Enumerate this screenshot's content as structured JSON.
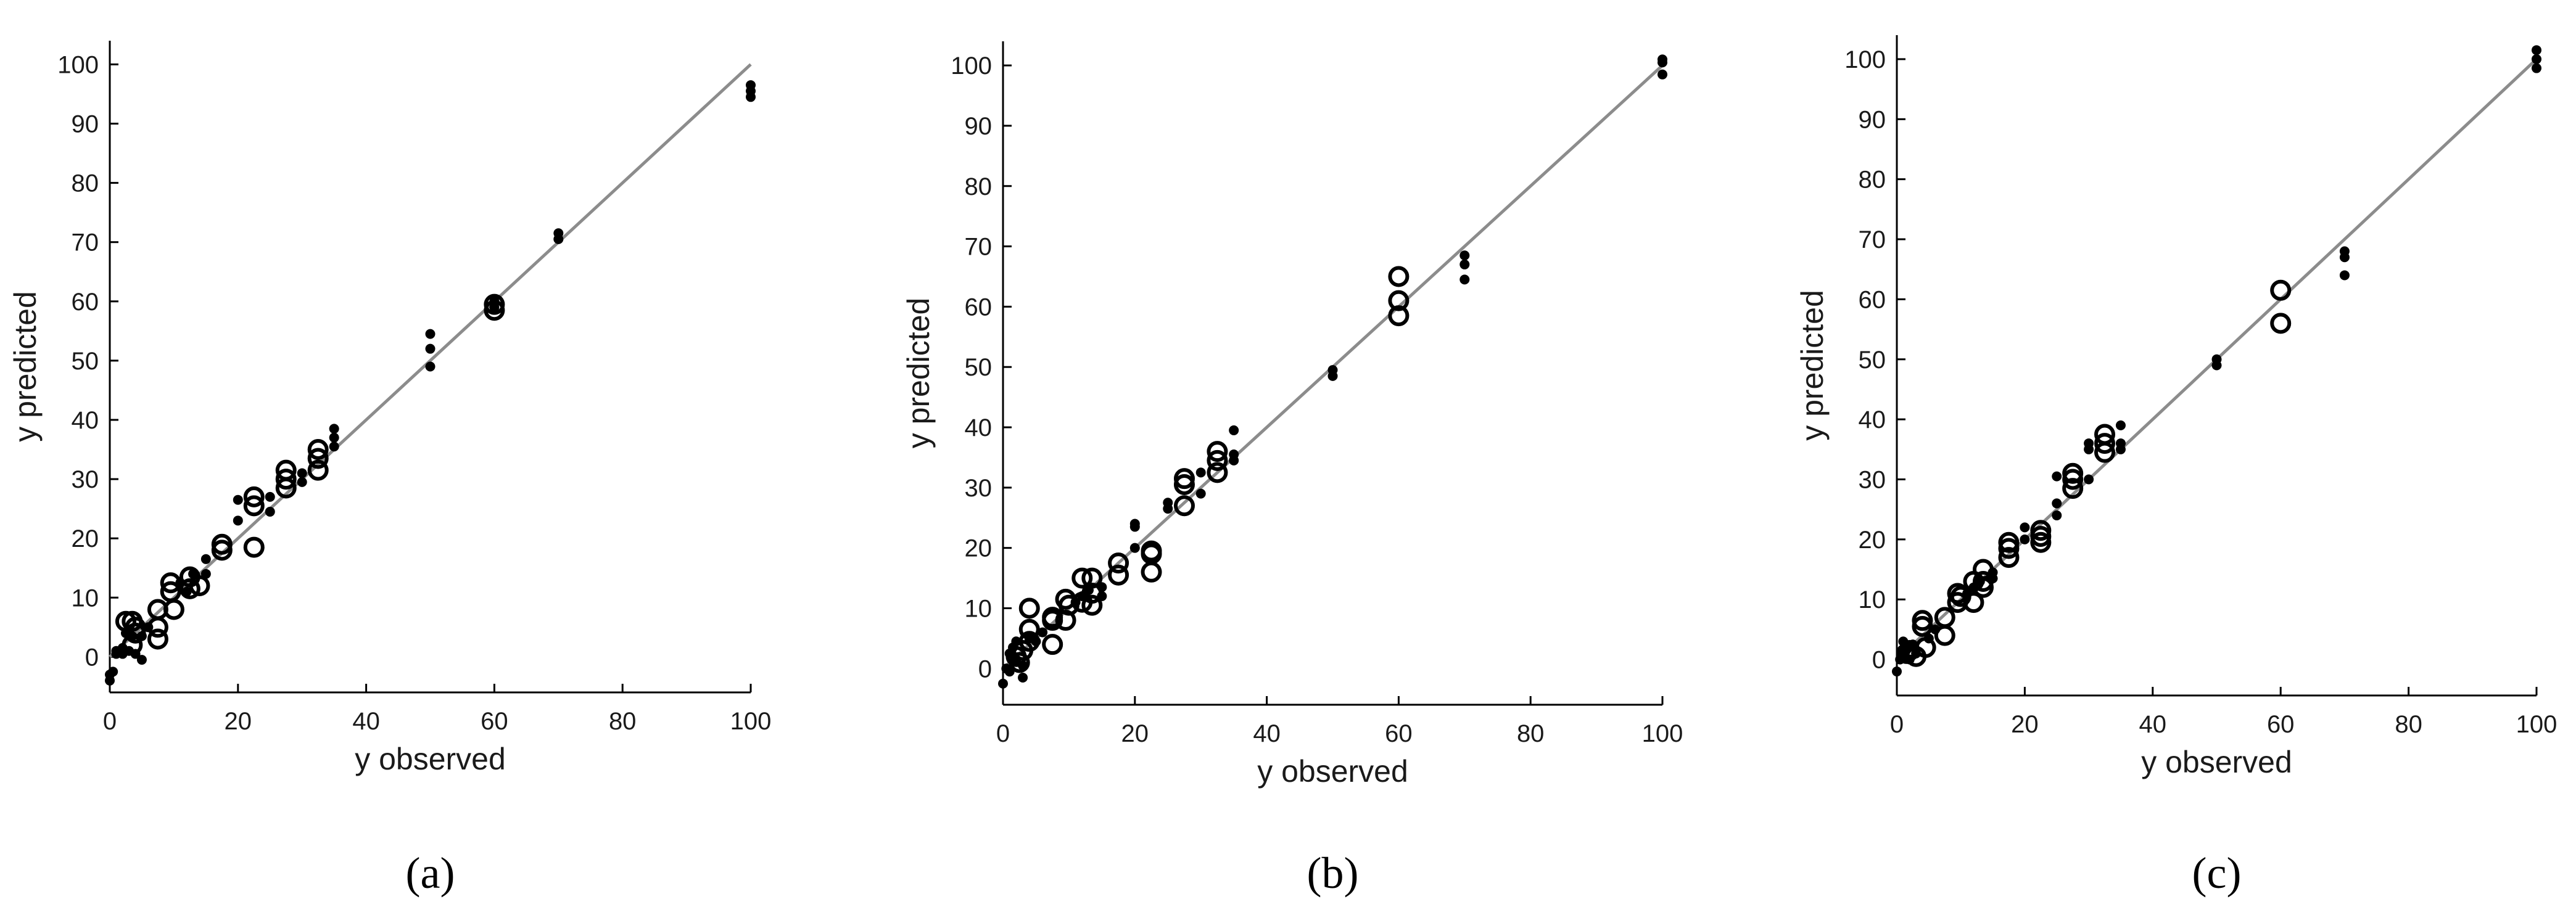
{
  "colors": {
    "axis": "#000000",
    "identity_line": "#8c8c8c",
    "marker": "#000000"
  },
  "chart_data": [
    {
      "type": "scatter",
      "panel_label": "(a)",
      "xlabel": "y observed",
      "ylabel": "y predicted",
      "xlim": [
        0,
        100
      ],
      "ylim": [
        -6,
        104
      ],
      "xticks": [
        0,
        20,
        40,
        60,
        80,
        100
      ],
      "yticks": [
        0,
        10,
        20,
        30,
        40,
        50,
        60,
        70,
        80,
        90,
        100
      ],
      "grid": false,
      "identity_line": [
        [
          0,
          0
        ],
        [
          100,
          100
        ]
      ],
      "series": [
        {
          "marker": "filled-dot",
          "points": [
            [
              0,
              -3
            ],
            [
              0,
              -4
            ],
            [
              0.5,
              -2.5
            ],
            [
              1,
              0.5
            ],
            [
              1,
              1
            ],
            [
              2,
              0.5
            ],
            [
              2,
              1.5
            ],
            [
              2.5,
              4
            ],
            [
              3,
              1
            ],
            [
              3.5,
              3.5
            ],
            [
              4,
              0.5
            ],
            [
              5,
              3.5
            ],
            [
              5,
              -0.5
            ],
            [
              6,
              5
            ],
            [
              11,
              12.5
            ],
            [
              12,
              11
            ],
            [
              13,
              14
            ],
            [
              15,
              14
            ],
            [
              15,
              16.5
            ],
            [
              20,
              23
            ],
            [
              20,
              26.5
            ],
            [
              25,
              27
            ],
            [
              25,
              24.5
            ],
            [
              30,
              29.5
            ],
            [
              30,
              31
            ],
            [
              35,
              35.5
            ],
            [
              35,
              37
            ],
            [
              35,
              38.5
            ],
            [
              50,
              49
            ],
            [
              50,
              52
            ],
            [
              50,
              54.5
            ],
            [
              60,
              59
            ],
            [
              60,
              60
            ],
            [
              70,
              70.5
            ],
            [
              70,
              71.5
            ],
            [
              100,
              94.5
            ],
            [
              100,
              95.5
            ],
            [
              100,
              96.5
            ]
          ]
        },
        {
          "marker": "open-circle",
          "points": [
            [
              2.5,
              6
            ],
            [
              3.5,
              6
            ],
            [
              3.5,
              2
            ],
            [
              4,
              4
            ],
            [
              4,
              5
            ],
            [
              7.5,
              3
            ],
            [
              7.5,
              5
            ],
            [
              7.5,
              8
            ],
            [
              9.5,
              11
            ],
            [
              9.5,
              12.5
            ],
            [
              10,
              8
            ],
            [
              12.5,
              11.5
            ],
            [
              12.5,
              13.5
            ],
            [
              14,
              12
            ],
            [
              17.5,
              18
            ],
            [
              17.5,
              19
            ],
            [
              22.5,
              18.5
            ],
            [
              22.5,
              25.5
            ],
            [
              22.5,
              27
            ],
            [
              27.5,
              28.5
            ],
            [
              27.5,
              30
            ],
            [
              27.5,
              31.5
            ],
            [
              32.5,
              31.5
            ],
            [
              32.5,
              33.5
            ],
            [
              32.5,
              35
            ],
            [
              60,
              58.5
            ],
            [
              60,
              59.5
            ]
          ]
        }
      ]
    },
    {
      "type": "scatter",
      "panel_label": "(b)",
      "xlabel": "y observed",
      "ylabel": "y predicted",
      "xlim": [
        0,
        100
      ],
      "ylim": [
        -6,
        104
      ],
      "xticks": [
        0,
        20,
        40,
        60,
        80,
        100
      ],
      "yticks": [
        0,
        10,
        20,
        30,
        40,
        50,
        60,
        70,
        80,
        90,
        100
      ],
      "grid": false,
      "identity_line": [
        [
          0,
          0
        ],
        [
          100,
          100
        ]
      ],
      "series": [
        {
          "marker": "filled-dot",
          "points": [
            [
              0,
              -2.5
            ],
            [
              0.5,
              0
            ],
            [
              1,
              2.5
            ],
            [
              1,
              -0.5
            ],
            [
              1.5,
              3.5
            ],
            [
              2,
              1.5
            ],
            [
              2,
              4.5
            ],
            [
              3,
              -1.5
            ],
            [
              3,
              0.5
            ],
            [
              4,
              5
            ],
            [
              5,
              4.5
            ],
            [
              6,
              6
            ],
            [
              11,
              11
            ],
            [
              12,
              12
            ],
            [
              13,
              13
            ],
            [
              15,
              13.5
            ],
            [
              15,
              12
            ],
            [
              20,
              20
            ],
            [
              20,
              24
            ],
            [
              20,
              23.5
            ],
            [
              25,
              26.5
            ],
            [
              25,
              27.5
            ],
            [
              30,
              29
            ],
            [
              30,
              32.5
            ],
            [
              35,
              34.5
            ],
            [
              35,
              35.5
            ],
            [
              35,
              39.5
            ],
            [
              50,
              48.5
            ],
            [
              50,
              49.5
            ],
            [
              70,
              64.5
            ],
            [
              70,
              67
            ],
            [
              70,
              68.5
            ],
            [
              100,
              98.5
            ],
            [
              100,
              100.5
            ],
            [
              100,
              101
            ]
          ]
        },
        {
          "marker": "open-circle",
          "points": [
            [
              2,
              2
            ],
            [
              2.5,
              1
            ],
            [
              3,
              3
            ],
            [
              4,
              4.5
            ],
            [
              4,
              6.5
            ],
            [
              4,
              10
            ],
            [
              7.5,
              4
            ],
            [
              7.5,
              8
            ],
            [
              7.5,
              8.5
            ],
            [
              9.5,
              8
            ],
            [
              9.5,
              11.5
            ],
            [
              10,
              10.5
            ],
            [
              12,
              11
            ],
            [
              12,
              15
            ],
            [
              13.5,
              10.5
            ],
            [
              13.5,
              12.5
            ],
            [
              13.5,
              15
            ],
            [
              17.5,
              15.5
            ],
            [
              17.5,
              17.5
            ],
            [
              22.5,
              16
            ],
            [
              22.5,
              19
            ],
            [
              22.5,
              19.5
            ],
            [
              27.5,
              27
            ],
            [
              27.5,
              30.5
            ],
            [
              27.5,
              31.5
            ],
            [
              32.5,
              32.5
            ],
            [
              32.5,
              34.5
            ],
            [
              32.5,
              36
            ],
            [
              60,
              58.5
            ],
            [
              60,
              61
            ],
            [
              60,
              65
            ]
          ]
        }
      ]
    },
    {
      "type": "scatter",
      "panel_label": "(c)",
      "xlabel": "y observed",
      "ylabel": "y predicted",
      "xlim": [
        0,
        100
      ],
      "ylim": [
        -6,
        104
      ],
      "xticks": [
        0,
        20,
        40,
        60,
        80,
        100
      ],
      "yticks": [
        0,
        10,
        20,
        30,
        40,
        50,
        60,
        70,
        80,
        90,
        100
      ],
      "grid": false,
      "identity_line": [
        [
          0,
          0
        ],
        [
          100,
          100
        ]
      ],
      "series": [
        {
          "marker": "filled-dot",
          "points": [
            [
              0,
              -2
            ],
            [
              0.5,
              0
            ],
            [
              1,
              3
            ],
            [
              1,
              1
            ],
            [
              1.5,
              2
            ],
            [
              2,
              0
            ],
            [
              2.5,
              2.5
            ],
            [
              3,
              1
            ],
            [
              5,
              3.5
            ],
            [
              6,
              5
            ],
            [
              11,
              11
            ],
            [
              12,
              12
            ],
            [
              13,
              13
            ],
            [
              15,
              13.5
            ],
            [
              15,
              14.5
            ],
            [
              20,
              20
            ],
            [
              20,
              22
            ],
            [
              25,
              24
            ],
            [
              25,
              26
            ],
            [
              25,
              30.5
            ],
            [
              30,
              30
            ],
            [
              30,
              35
            ],
            [
              30,
              36
            ],
            [
              35,
              35
            ],
            [
              35,
              36
            ],
            [
              35,
              39
            ],
            [
              50,
              49
            ],
            [
              50,
              50
            ],
            [
              70,
              64
            ],
            [
              70,
              67
            ],
            [
              70,
              68
            ],
            [
              100,
              98.5
            ],
            [
              100,
              100
            ],
            [
              100,
              101.5
            ]
          ]
        },
        {
          "marker": "open-circle",
          "points": [
            [
              1.5,
              1
            ],
            [
              2,
              1.5
            ],
            [
              3,
              0.5
            ],
            [
              4,
              5.5
            ],
            [
              4,
              6.5
            ],
            [
              4.5,
              2
            ],
            [
              7.5,
              4
            ],
            [
              7.5,
              7
            ],
            [
              9.5,
              9.5
            ],
            [
              9.5,
              11
            ],
            [
              10,
              10.5
            ],
            [
              12,
              9.5
            ],
            [
              12,
              13
            ],
            [
              13.5,
              12
            ],
            [
              13.5,
              13
            ],
            [
              13.5,
              15
            ],
            [
              17.5,
              17
            ],
            [
              17.5,
              18.5
            ],
            [
              17.5,
              19.5
            ],
            [
              22.5,
              19.5
            ],
            [
              22.5,
              20.5
            ],
            [
              22.5,
              21.5
            ],
            [
              27.5,
              28.5
            ],
            [
              27.5,
              30
            ],
            [
              27.5,
              31
            ],
            [
              32.5,
              34.5
            ],
            [
              32.5,
              36
            ],
            [
              32.5,
              37.5
            ],
            [
              60,
              56
            ],
            [
              60,
              61.5
            ]
          ]
        }
      ]
    }
  ]
}
